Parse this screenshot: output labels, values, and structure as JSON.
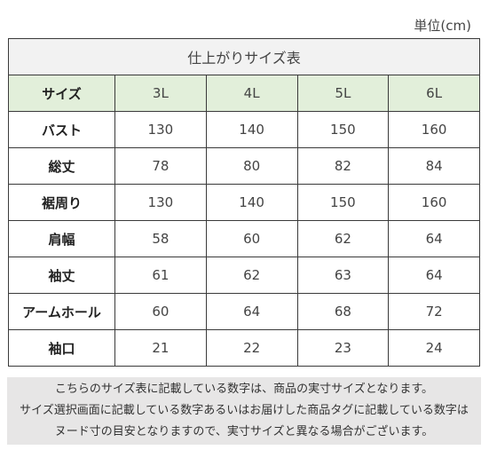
{
  "unit_label": "単位(cm)",
  "table": {
    "title": "仕上がりサイズ表",
    "header": [
      "サイズ",
      "3L",
      "4L",
      "5L",
      "6L"
    ],
    "rows": [
      {
        "label": "バスト",
        "values": [
          "130",
          "140",
          "150",
          "160"
        ]
      },
      {
        "label": "総丈",
        "values": [
          "78",
          "80",
          "82",
          "84"
        ]
      },
      {
        "label": "裾周り",
        "values": [
          "130",
          "140",
          "150",
          "160"
        ]
      },
      {
        "label": "肩幅",
        "values": [
          "58",
          "60",
          "62",
          "64"
        ]
      },
      {
        "label": "袖丈",
        "values": [
          "61",
          "62",
          "63",
          "64"
        ]
      },
      {
        "label": "アームホール",
        "values": [
          "60",
          "64",
          "68",
          "72"
        ]
      },
      {
        "label": "袖口",
        "values": [
          "21",
          "22",
          "23",
          "24"
        ]
      }
    ]
  },
  "note_lines": [
    "こちらのサイズ表に記載している数字は、商品の実寸サイズとなります。",
    "サイズ選択画面に記載している数字あるいはお届けした商品タグに記載している数字は",
    "ヌード寸の目安となりますので、実寸サイズと異なる場合がございます。"
  ],
  "colors": {
    "header_bg": "#e2efda",
    "title_bg": "#f2f2f2",
    "note_bg": "#e7e6e6",
    "border": "#3a3a3a"
  }
}
